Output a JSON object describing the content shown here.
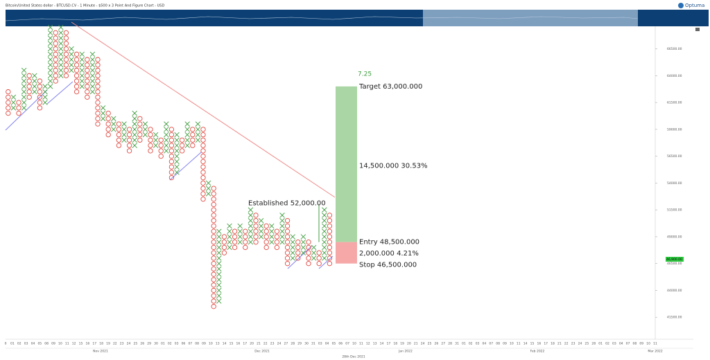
{
  "chart_data": {
    "type": "point_and_figure",
    "title": "Bitcoin/United States dollar - BTCUSD.CV - 1 Minute - $500 x 3 Point And Figure Chart - USD",
    "logo": "Optuma",
    "box_size": 500,
    "x_color": "#3f9d3f",
    "o_color": "#e0473f",
    "ylim": [
      39450,
      68600
    ],
    "yticks": [
      {
        "value": 41500,
        "label": "41500.00"
      },
      {
        "value": 44000,
        "label": "44000.00"
      },
      {
        "value": 46500,
        "label": "46500.00"
      },
      {
        "value": 49000,
        "label": "49000.00"
      },
      {
        "value": 51500,
        "label": "51500.00"
      },
      {
        "value": 54000,
        "label": "54000.00"
      },
      {
        "value": 56500,
        "label": "56500.00"
      },
      {
        "value": 59000,
        "label": "59000.00"
      },
      {
        "value": 61500,
        "label": "61500.00"
      },
      {
        "value": 64000,
        "label": "64000.00"
      },
      {
        "value": 66500,
        "label": "66500.00"
      }
    ],
    "last_price": {
      "value": 46900,
      "label": "46,900.00"
    },
    "columns": [
      {
        "type": "O",
        "low": 60500,
        "high": 62500
      },
      {
        "type": "X",
        "low": 61000,
        "high": 62000
      },
      {
        "type": "O",
        "low": 60500,
        "high": 61500
      },
      {
        "type": "X",
        "low": 61000,
        "high": 64500
      },
      {
        "type": "O",
        "low": 62000,
        "high": 64000
      },
      {
        "type": "X",
        "low": 62500,
        "high": 64000
      },
      {
        "type": "O",
        "low": 61000,
        "high": 63500
      },
      {
        "type": "X",
        "low": 61500,
        "high": 63000
      },
      {
        "type": "X",
        "low": 63000,
        "high": 68500
      },
      {
        "type": "O",
        "low": 63500,
        "high": 68000
      },
      {
        "type": "X",
        "low": 64000,
        "high": 68500
      },
      {
        "type": "O",
        "low": 64000,
        "high": 68000
      },
      {
        "type": "X",
        "low": 64500,
        "high": 66500
      },
      {
        "type": "O",
        "low": 62500,
        "high": 66000
      },
      {
        "type": "X",
        "low": 63000,
        "high": 66000
      },
      {
        "type": "O",
        "low": 62000,
        "high": 65500
      },
      {
        "type": "X",
        "low": 62500,
        "high": 66000
      },
      {
        "type": "O",
        "low": 59500,
        "high": 65500
      },
      {
        "type": "X",
        "low": 60000,
        "high": 61000
      },
      {
        "type": "O",
        "low": 58500,
        "high": 60500
      },
      {
        "type": "X",
        "low": 59000,
        "high": 60000
      },
      {
        "type": "O",
        "low": 57500,
        "high": 59500
      },
      {
        "type": "X",
        "low": 58000,
        "high": 59500
      },
      {
        "type": "O",
        "low": 57000,
        "high": 59000
      },
      {
        "type": "X",
        "low": 57500,
        "high": 60500
      },
      {
        "type": "O",
        "low": 58000,
        "high": 60000
      },
      {
        "type": "X",
        "low": 58500,
        "high": 59500
      },
      {
        "type": "O",
        "low": 57000,
        "high": 59000
      },
      {
        "type": "X",
        "low": 57500,
        "high": 58500
      },
      {
        "type": "O",
        "low": 56500,
        "high": 58000
      },
      {
        "type": "X",
        "low": 57000,
        "high": 59500
      },
      {
        "type": "O",
        "low": 54500,
        "high": 59000
      },
      {
        "type": "X",
        "low": 55000,
        "high": 58500
      },
      {
        "type": "O",
        "low": 57000,
        "high": 58000
      },
      {
        "type": "X",
        "low": 57500,
        "high": 59500
      },
      {
        "type": "O",
        "low": 57500,
        "high": 59000
      },
      {
        "type": "X",
        "low": 58000,
        "high": 59500
      },
      {
        "type": "O",
        "low": 52500,
        "high": 59000
      },
      {
        "type": "X",
        "low": 53000,
        "high": 54000
      },
      {
        "type": "O",
        "low": 42500,
        "high": 53500
      },
      {
        "type": "X",
        "low": 43000,
        "high": 49500
      },
      {
        "type": "O",
        "low": 47500,
        "high": 49000
      },
      {
        "type": "X",
        "low": 48000,
        "high": 50000
      },
      {
        "type": "O",
        "low": 48000,
        "high": 49500
      },
      {
        "type": "X",
        "low": 48500,
        "high": 50000
      },
      {
        "type": "O",
        "low": 48000,
        "high": 49500
      },
      {
        "type": "X",
        "low": 48500,
        "high": 51500
      },
      {
        "type": "O",
        "low": 48500,
        "high": 51000
      },
      {
        "type": "X",
        "low": 49000,
        "high": 50500
      },
      {
        "type": "O",
        "low": 48000,
        "high": 50000
      },
      {
        "type": "X",
        "low": 48500,
        "high": 50000
      },
      {
        "type": "O",
        "low": 48000,
        "high": 49500
      },
      {
        "type": "X",
        "low": 48500,
        "high": 51000
      },
      {
        "type": "O",
        "low": 46500,
        "high": 50500
      },
      {
        "type": "X",
        "low": 47000,
        "high": 49000
      },
      {
        "type": "O",
        "low": 47000,
        "high": 48500
      },
      {
        "type": "X",
        "low": 47500,
        "high": 49000
      },
      {
        "type": "O",
        "low": 46500,
        "high": 48500
      },
      {
        "type": "X",
        "low": 47000,
        "high": 48000
      },
      {
        "type": "O",
        "low": 46500,
        "high": 47500
      },
      {
        "type": "X",
        "low": 47000,
        "high": 51500
      },
      {
        "type": "O",
        "low": 46500,
        "high": 51000
      }
    ],
    "established": {
      "value": 52000,
      "label": "Established 52,000.00"
    },
    "position": {
      "ratio": "7.25",
      "target": 63000,
      "target_label": "Target   63,000.000",
      "entry": 48500,
      "entry_label": "Entry   48,500.000",
      "stop": 46500,
      "stop_label": "Stop   46,500.000",
      "reward_label": "14,500.000   30.53%",
      "risk_label": "2,000.000   4.21%"
    },
    "x_day_labels": [
      "0",
      "01",
      "02",
      "03",
      "04",
      "05",
      "08",
      "09",
      "10",
      "11",
      "12",
      "15",
      "16",
      "17",
      "18",
      "19",
      "22",
      "23",
      "24",
      "25",
      "26",
      "29",
      "30",
      "01",
      "02",
      "03",
      "06",
      "07",
      "08",
      "09",
      "10",
      "13",
      "14",
      "15",
      "16",
      "17",
      "20",
      "21",
      "22",
      "23",
      "24",
      "27",
      "28",
      "29",
      "30",
      "31",
      "03",
      "04",
      "05",
      "06",
      "07",
      "10",
      "11",
      "12",
      "13",
      "14",
      "17",
      "18",
      "19",
      "20",
      "21",
      "24",
      "25",
      "26",
      "27",
      "28",
      "31",
      "01",
      "02",
      "03",
      "04",
      "07",
      "08",
      "09",
      "10",
      "11",
      "14",
      "15",
      "16",
      "17",
      "18",
      "21",
      "22",
      "23",
      "24",
      "25",
      "28",
      "01",
      "02",
      "03",
      "04",
      "07",
      "08",
      "09",
      "10",
      "11"
    ],
    "x_month_labels": [
      "Nov 2021",
      "Dec 2021",
      "Jan 2022",
      "Feb 2022",
      "Mar 2022"
    ],
    "cursor_date": "28th Dec 2021"
  }
}
